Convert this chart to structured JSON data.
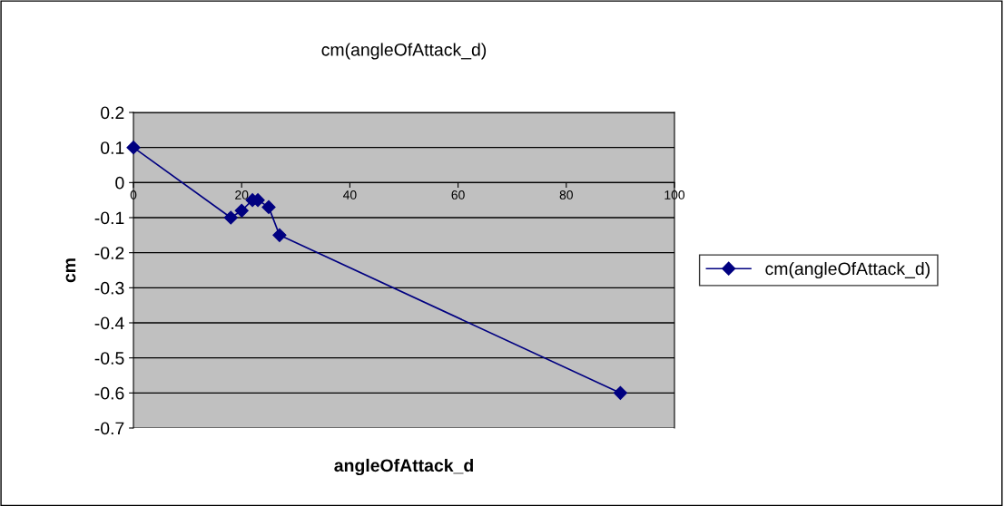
{
  "chart_data": {
    "type": "line",
    "title": "cm(angleOfAttack_d)",
    "xlabel": "angleOfAttack_d",
    "ylabel": "cm",
    "x": [
      0,
      18,
      20,
      22,
      23,
      25,
      27,
      90
    ],
    "series": [
      {
        "name": "cm(angleOfAttack_d)",
        "color": "#000080",
        "values": [
          0.1,
          -0.1,
          -0.08,
          -0.05,
          -0.05,
          -0.07,
          -0.15,
          -0.6
        ]
      }
    ],
    "xlim": [
      0,
      100
    ],
    "xticks": [
      0,
      20,
      40,
      60,
      80,
      100
    ],
    "ylim": [
      -0.7,
      0.2
    ],
    "yticks": [
      -0.7,
      -0.6,
      -0.5,
      -0.4,
      -0.3,
      -0.2,
      -0.1,
      0,
      0.1,
      0.2
    ],
    "grid": "y",
    "legend": "right",
    "marker": "diamond",
    "line_style": "solid"
  }
}
